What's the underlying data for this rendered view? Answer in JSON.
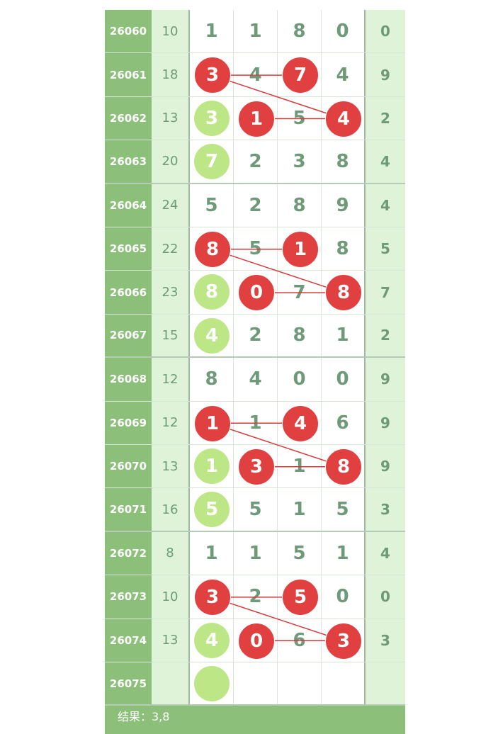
{
  "colors": {
    "id_bg": "#8cc07a",
    "sum_bg": "#dff3d8",
    "digit": "#6f9a7a",
    "red_ball": "#e04040",
    "green_ball": "#bde687"
  },
  "rows": [
    {
      "id": "26060",
      "sum": "10",
      "digits": [
        "1",
        "1",
        "8",
        "0"
      ],
      "last": "0",
      "red": [],
      "green": []
    },
    {
      "id": "26061",
      "sum": "18",
      "digits": [
        "3",
        "4",
        "7",
        "4"
      ],
      "last": "9",
      "red": [
        0,
        2
      ],
      "green": []
    },
    {
      "id": "26062",
      "sum": "13",
      "digits": [
        "3",
        "1",
        "5",
        "4"
      ],
      "last": "2",
      "red": [
        1,
        3
      ],
      "green": [
        0
      ]
    },
    {
      "id": "26063",
      "sum": "20",
      "digits": [
        "7",
        "2",
        "3",
        "8"
      ],
      "last": "4",
      "red": [],
      "green": [
        0
      ]
    },
    {
      "id": "26064",
      "sum": "24",
      "digits": [
        "5",
        "2",
        "8",
        "9"
      ],
      "last": "4",
      "red": [],
      "green": []
    },
    {
      "id": "26065",
      "sum": "22",
      "digits": [
        "8",
        "5",
        "1",
        "8"
      ],
      "last": "5",
      "red": [
        0,
        2
      ],
      "green": []
    },
    {
      "id": "26066",
      "sum": "23",
      "digits": [
        "8",
        "0",
        "7",
        "8"
      ],
      "last": "7",
      "red": [
        1,
        3
      ],
      "green": [
        0
      ]
    },
    {
      "id": "26067",
      "sum": "15",
      "digits": [
        "4",
        "2",
        "8",
        "1"
      ],
      "last": "2",
      "red": [],
      "green": [
        0
      ]
    },
    {
      "id": "26068",
      "sum": "12",
      "digits": [
        "8",
        "4",
        "0",
        "0"
      ],
      "last": "9",
      "red": [],
      "green": []
    },
    {
      "id": "26069",
      "sum": "12",
      "digits": [
        "1",
        "1",
        "4",
        "6"
      ],
      "last": "9",
      "red": [
        0,
        2
      ],
      "green": []
    },
    {
      "id": "26070",
      "sum": "13",
      "digits": [
        "1",
        "3",
        "1",
        "8"
      ],
      "last": "9",
      "red": [
        1,
        3
      ],
      "green": [
        0
      ]
    },
    {
      "id": "26071",
      "sum": "16",
      "digits": [
        "5",
        "5",
        "1",
        "5"
      ],
      "last": "3",
      "red": [],
      "green": [
        0
      ]
    },
    {
      "id": "26072",
      "sum": "8",
      "digits": [
        "1",
        "1",
        "5",
        "1"
      ],
      "last": "4",
      "red": [],
      "green": []
    },
    {
      "id": "26073",
      "sum": "10",
      "digits": [
        "3",
        "2",
        "5",
        "0"
      ],
      "last": "0",
      "red": [
        0,
        2
      ],
      "green": []
    },
    {
      "id": "26074",
      "sum": "13",
      "digits": [
        "4",
        "0",
        "6",
        "3"
      ],
      "last": "3",
      "red": [
        1,
        3
      ],
      "green": [
        0
      ]
    },
    {
      "id": "26075",
      "sum": "",
      "digits": [
        "",
        "",
        "",
        ""
      ],
      "last": "",
      "red": [],
      "green": [
        0
      ]
    }
  ],
  "footer": {
    "result": "结果：3,8"
  }
}
